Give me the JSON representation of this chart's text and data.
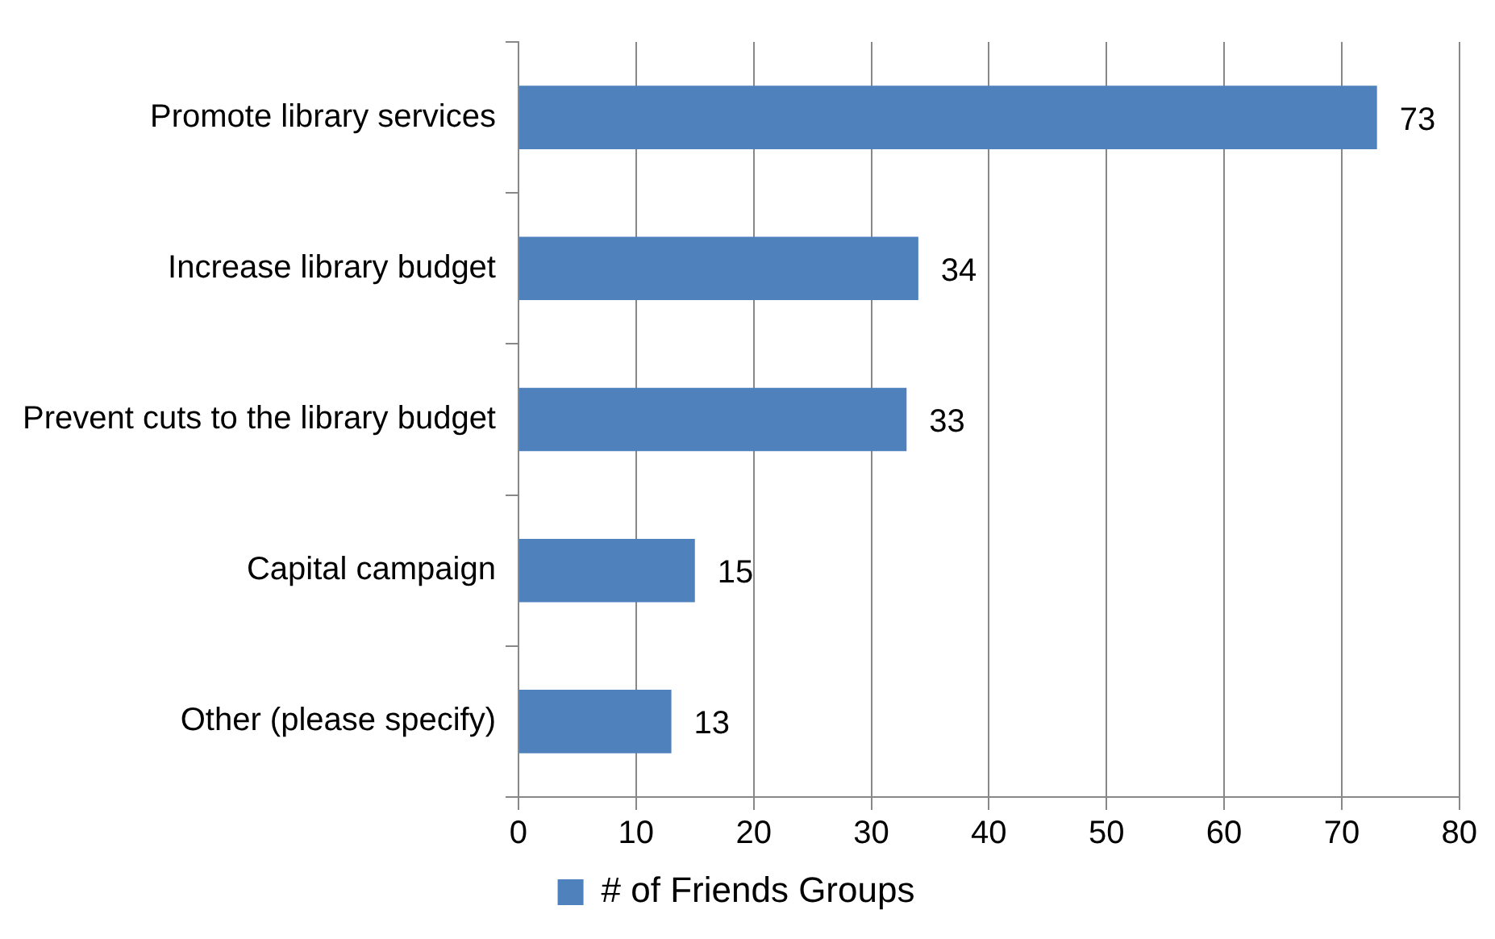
{
  "chart_data": {
    "type": "bar",
    "orientation": "horizontal",
    "categories": [
      "Promote library services",
      "Increase library budget",
      "Prevent cuts to the library budget",
      "Capital campaign",
      "Other (please specify)"
    ],
    "series": [
      {
        "name": "# of Friends Groups",
        "color": "#4f81bd",
        "values": [
          73,
          34,
          33,
          15,
          13
        ]
      }
    ],
    "xlim": [
      0,
      80
    ],
    "xticks": [
      0,
      10,
      20,
      30,
      40,
      50,
      60,
      70,
      80
    ],
    "grid": "x",
    "legend": "bottom",
    "data_labels": true
  }
}
